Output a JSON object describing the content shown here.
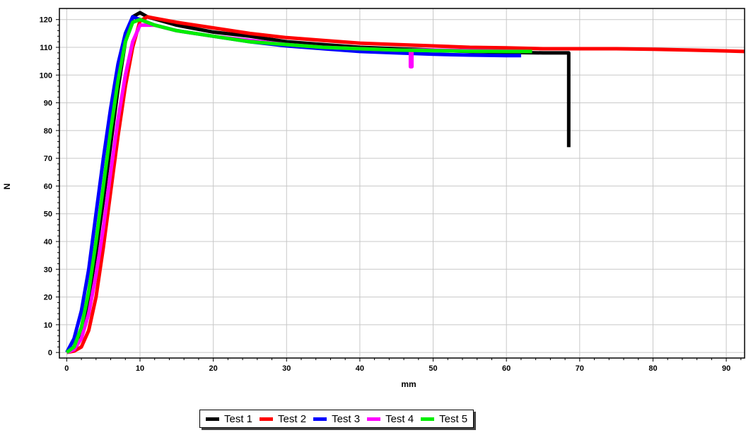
{
  "chart_data": {
    "type": "line",
    "title": "",
    "xlabel": "mm",
    "ylabel": "N",
    "xlim": [
      -1,
      92.5
    ],
    "ylim": [
      -2,
      124
    ],
    "xticks": [
      0,
      10,
      20,
      30,
      40,
      50,
      60,
      70,
      80,
      90
    ],
    "yticks": [
      0,
      10,
      20,
      30,
      40,
      50,
      60,
      70,
      80,
      90,
      100,
      110,
      120
    ],
    "grid": true,
    "legend_position": "bottom-center",
    "series": [
      {
        "name": "Test 1",
        "color": "#000000",
        "points": [
          [
            0,
            0
          ],
          [
            1,
            2
          ],
          [
            2,
            8
          ],
          [
            3,
            20
          ],
          [
            4,
            36
          ],
          [
            5,
            55
          ],
          [
            6,
            75
          ],
          [
            7,
            95
          ],
          [
            8,
            112
          ],
          [
            9,
            121
          ],
          [
            10,
            122.5
          ],
          [
            11,
            121
          ],
          [
            13,
            119.5
          ],
          [
            15,
            118
          ],
          [
            20,
            115.5
          ],
          [
            25,
            114
          ],
          [
            30,
            112
          ],
          [
            35,
            111
          ],
          [
            40,
            110
          ],
          [
            45,
            109.5
          ],
          [
            50,
            109
          ],
          [
            55,
            108.5
          ],
          [
            60,
            108.2
          ],
          [
            65,
            108
          ],
          [
            68.5,
            108
          ],
          [
            68.5,
            74
          ]
        ]
      },
      {
        "name": "Test 2",
        "color": "#ff0000",
        "points": [
          [
            0,
            0
          ],
          [
            1,
            0.5
          ],
          [
            2,
            2
          ],
          [
            3,
            8
          ],
          [
            4,
            20
          ],
          [
            5,
            38
          ],
          [
            6,
            58
          ],
          [
            7,
            78
          ],
          [
            8,
            96
          ],
          [
            9,
            110
          ],
          [
            10,
            119.5
          ],
          [
            11,
            121
          ],
          [
            12,
            120.5
          ],
          [
            15,
            119
          ],
          [
            20,
            117
          ],
          [
            25,
            115
          ],
          [
            30,
            113.5
          ],
          [
            35,
            112.5
          ],
          [
            40,
            111.5
          ],
          [
            45,
            111
          ],
          [
            50,
            110.5
          ],
          [
            55,
            110
          ],
          [
            60,
            109.8
          ],
          [
            65,
            109.5
          ],
          [
            70,
            109.5
          ],
          [
            75,
            109.5
          ],
          [
            80,
            109.3
          ],
          [
            85,
            109
          ],
          [
            90,
            108.7
          ],
          [
            92.5,
            108.5
          ]
        ]
      },
      {
        "name": "Test 3",
        "color": "#0000ff",
        "points": [
          [
            0,
            0
          ],
          [
            1,
            5
          ],
          [
            2,
            15
          ],
          [
            3,
            30
          ],
          [
            4,
            50
          ],
          [
            5,
            70
          ],
          [
            6,
            88
          ],
          [
            7,
            104
          ],
          [
            8,
            115
          ],
          [
            9,
            121
          ],
          [
            10,
            120
          ],
          [
            12,
            118
          ],
          [
            15,
            116
          ],
          [
            20,
            114
          ],
          [
            25,
            112
          ],
          [
            30,
            110.5
          ],
          [
            35,
            109.5
          ],
          [
            40,
            108.5
          ],
          [
            45,
            108
          ],
          [
            50,
            107.5
          ],
          [
            55,
            107.2
          ],
          [
            60,
            107
          ],
          [
            62,
            107
          ]
        ]
      },
      {
        "name": "Test 4",
        "color": "#ff00ff",
        "points": [
          [
            0,
            0
          ],
          [
            1,
            1
          ],
          [
            2,
            5
          ],
          [
            3,
            14
          ],
          [
            4,
            28
          ],
          [
            5,
            45
          ],
          [
            6,
            65
          ],
          [
            7,
            84
          ],
          [
            8,
            100
          ],
          [
            9,
            112
          ],
          [
            10,
            118
          ],
          [
            12,
            118
          ],
          [
            15,
            116
          ],
          [
            20,
            114
          ],
          [
            25,
            112.5
          ],
          [
            30,
            111
          ],
          [
            35,
            110
          ],
          [
            40,
            109.5
          ],
          [
            45,
            109
          ],
          [
            46.9,
            109
          ],
          [
            46.9,
            103
          ],
          [
            47.1,
            103
          ],
          [
            47.1,
            109
          ],
          [
            50,
            109
          ],
          [
            55,
            108.8
          ],
          [
            60,
            108.6
          ],
          [
            63,
            108.5
          ]
        ]
      },
      {
        "name": "Test 5",
        "color": "#00ee00",
        "points": [
          [
            0,
            0
          ],
          [
            1,
            2
          ],
          [
            2,
            9
          ],
          [
            3,
            22
          ],
          [
            4,
            40
          ],
          [
            5,
            60
          ],
          [
            6,
            80
          ],
          [
            7,
            98
          ],
          [
            8,
            112
          ],
          [
            9,
            119
          ],
          [
            10,
            120
          ],
          [
            12,
            118
          ],
          [
            15,
            116
          ],
          [
            20,
            114
          ],
          [
            25,
            112
          ],
          [
            30,
            111
          ],
          [
            35,
            110
          ],
          [
            40,
            109.5
          ],
          [
            45,
            109
          ],
          [
            50,
            108.8
          ],
          [
            55,
            108.6
          ],
          [
            60,
            108.5
          ],
          [
            63.5,
            108.5
          ]
        ]
      }
    ]
  },
  "legend_items": [
    {
      "label": "Test 1",
      "color": "#000000"
    },
    {
      "label": "Test 2",
      "color": "#ff0000"
    },
    {
      "label": "Test 3",
      "color": "#0000ff"
    },
    {
      "label": "Test 4",
      "color": "#ff00ff"
    },
    {
      "label": "Test 5",
      "color": "#00ee00"
    }
  ]
}
